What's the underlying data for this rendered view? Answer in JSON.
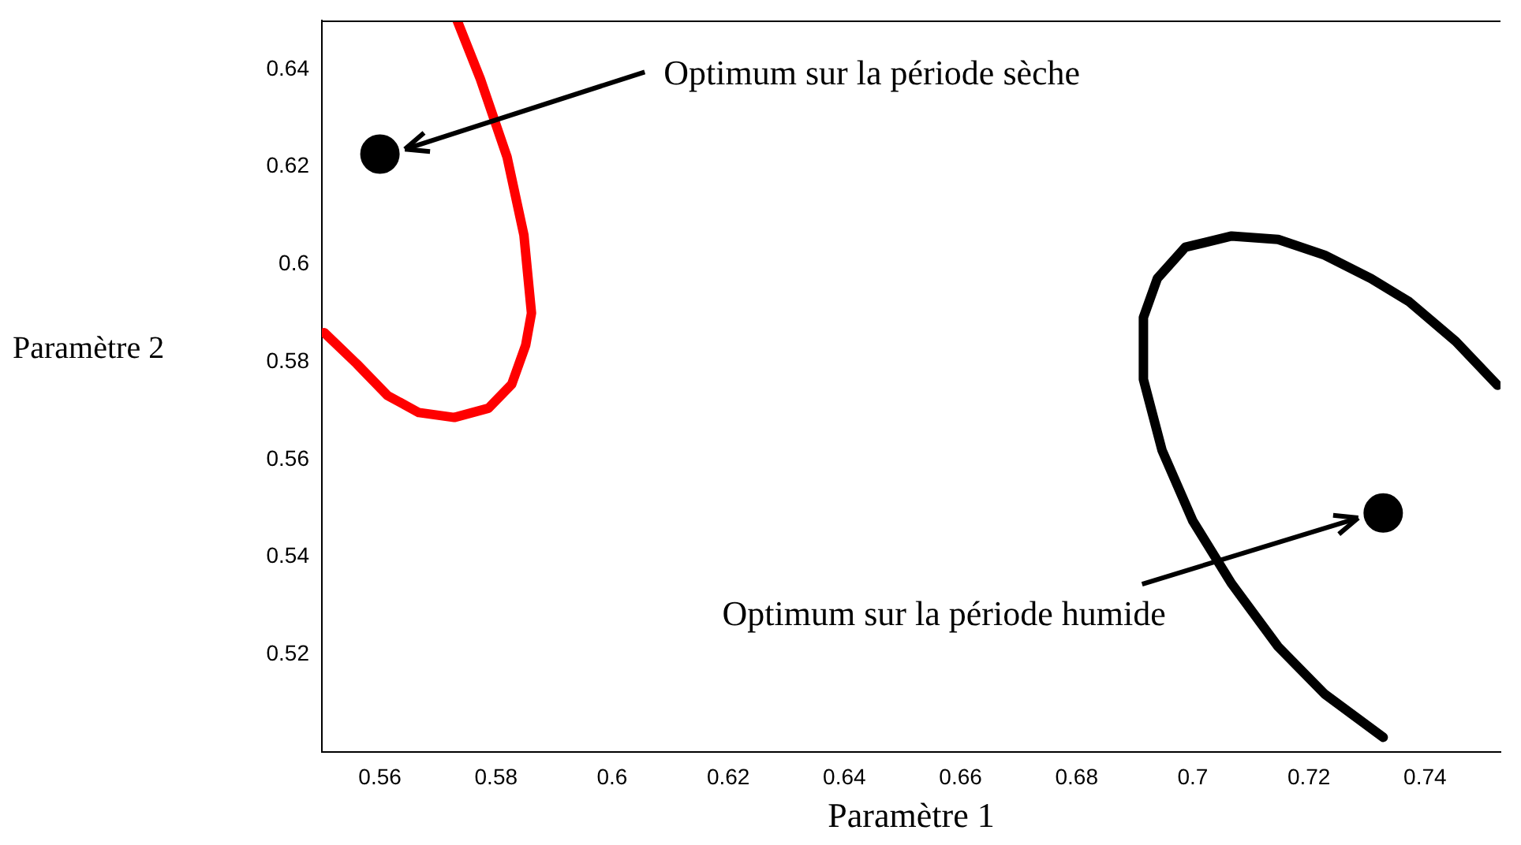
{
  "chart_data": {
    "type": "line",
    "xlabel": "Paramètre 1",
    "ylabel": "Paramètre 2",
    "xlim": [
      0.55,
      0.753
    ],
    "ylim": [
      0.5,
      0.65
    ],
    "xticks": [
      0.56,
      0.58,
      0.6,
      0.62,
      0.64,
      0.66,
      0.68,
      0.7,
      0.72,
      0.74
    ],
    "yticks": [
      0.52,
      0.54,
      0.56,
      0.58,
      0.6,
      0.62,
      0.64
    ],
    "grid": false,
    "legend": false,
    "line_style": "solid",
    "series": [
      {
        "type": "line",
        "color": "#ff0000",
        "marker": "none",
        "x": [
          0.5733,
          0.5773,
          0.5819,
          0.5848,
          0.5861,
          0.5851,
          0.5827,
          0.5787,
          0.5728,
          0.5667,
          0.5613,
          0.556,
          0.5504
        ],
        "values": [
          0.65,
          0.638,
          0.622,
          0.606,
          0.59,
          0.5834,
          0.5754,
          0.5705,
          0.5686,
          0.5696,
          0.5731,
          0.5796,
          0.586
        ]
      },
      {
        "type": "line",
        "color": "#000000",
        "marker": "none",
        "x": [
          0.7328,
          0.7227,
          0.7147,
          0.7067,
          0.7,
          0.6947,
          0.6915,
          0.6915,
          0.6939,
          0.6987,
          0.7067,
          0.7147,
          0.7227,
          0.7307,
          0.7373,
          0.7453,
          0.7525
        ],
        "values": [
          0.503,
          0.5119,
          0.5216,
          0.5345,
          0.5474,
          0.5619,
          0.5764,
          0.5891,
          0.5971,
          0.6035,
          0.6058,
          0.6051,
          0.6019,
          0.5971,
          0.5923,
          0.5842,
          0.5752
        ]
      },
      {
        "type": "scatter",
        "color": "#000000",
        "marker": "circle",
        "x": [
          0.56,
          0.7328
        ],
        "values": [
          0.6226,
          0.549
        ]
      }
    ],
    "annotations": [
      {
        "text": "Optimum sur la période sèche",
        "x": 0.5643,
        "y": 0.6236
      },
      {
        "text": "Optimum sur la période humide",
        "x": 0.7285,
        "y": 0.548
      }
    ]
  }
}
